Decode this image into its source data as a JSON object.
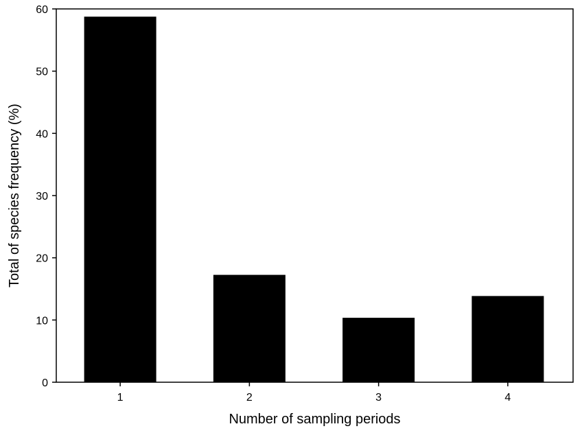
{
  "chart_data": {
    "type": "bar",
    "categories": [
      "1",
      "2",
      "3",
      "4"
    ],
    "values": [
      58.7,
      17.2,
      10.3,
      13.8
    ],
    "title": "",
    "xlabel": "Number of sampling periods",
    "ylabel": "Total of species frequency (%)",
    "ylim": [
      0,
      60
    ],
    "yticks": [
      0,
      10,
      20,
      30,
      40,
      50,
      60
    ],
    "grid": false,
    "legend": "none",
    "bar_color": "#000000"
  }
}
